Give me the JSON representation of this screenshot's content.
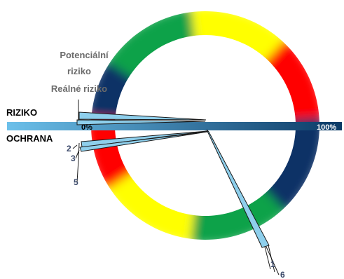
{
  "chart_data": {
    "type": "gauge",
    "labels": {
      "potential_risk_line1": "Potenciální",
      "potential_risk_line2": "riziko",
      "real_risk": "Reálné riziko",
      "risk": "RIZIKO",
      "protection": "OCHRANA",
      "scale_min": "0%",
      "scale_max": "100%"
    },
    "scale": {
      "min": 0,
      "max": 100,
      "unit": "%"
    },
    "gradient_stops": [
      {
        "pos": 0,
        "color": "#0b3a66"
      },
      {
        "pos": 1,
        "color": "#6cc0ea"
      }
    ],
    "risk_dial": {
      "band_colors": [
        "#0b3366",
        "#10a24a",
        "#ffff00",
        "#ff0000"
      ],
      "needles": [
        {
          "name": "potential-risk-needle",
          "value": 40
        },
        {
          "name": "real-risk-needle",
          "value": 40
        }
      ]
    },
    "protection_dial": {
      "band_colors": [
        "#ff0000",
        "#ffff00",
        "#10a24a",
        "#0b3366"
      ],
      "needles": [
        {
          "id": "2",
          "value": 40
        },
        {
          "id": "3",
          "value": 40
        },
        {
          "id": "5",
          "value": 40
        },
        {
          "id": "1",
          "value": 40
        },
        {
          "id": "6",
          "value": 40
        }
      ],
      "visible_ids": [
        "2",
        "3",
        "5",
        "1",
        "6"
      ]
    },
    "colors": {
      "needle_fill": "#8ecfec",
      "needle_stroke": "#1a1a1a",
      "bar_start": "#6cc0ea",
      "bar_end": "#0b3a66",
      "dark_label": "#000000",
      "grey_label": "#6b6b6b",
      "number_label": "#3c4a6b"
    }
  }
}
